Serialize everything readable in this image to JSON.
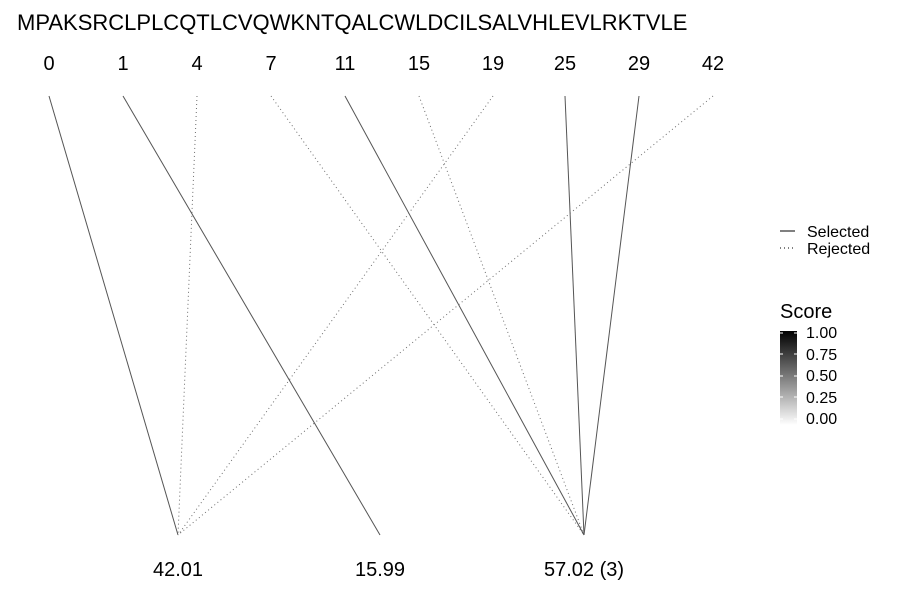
{
  "chart_data": {
    "type": "line",
    "sequence": "MPAKSRCLPLCQTLCVQWKNTQALCWLDCILSALVHLEVLRKTVLE",
    "positions": [
      "0",
      "1",
      "4",
      "7",
      "11",
      "15",
      "19",
      "25",
      "29",
      "42"
    ],
    "masses": [
      "42.01",
      "15.99",
      "57.02 (3)"
    ],
    "links": [
      {
        "position": "0",
        "mass": "42.01",
        "status": "Selected"
      },
      {
        "position": "1",
        "mass": "15.99",
        "status": "Selected"
      },
      {
        "position": "4",
        "mass": "42.01",
        "status": "Rejected"
      },
      {
        "position": "7",
        "mass": "57.02 (3)",
        "status": "Rejected"
      },
      {
        "position": "11",
        "mass": "57.02 (3)",
        "status": "Selected"
      },
      {
        "position": "15",
        "mass": "57.02 (3)",
        "status": "Rejected"
      },
      {
        "position": "19",
        "mass": "42.01",
        "status": "Rejected"
      },
      {
        "position": "25",
        "mass": "57.02 (3)",
        "status": "Selected"
      },
      {
        "position": "29",
        "mass": "57.02 (3)",
        "status": "Selected"
      },
      {
        "position": "42",
        "mass": "42.01",
        "status": "Rejected"
      }
    ],
    "legend": {
      "line_entries": [
        {
          "label": "Selected",
          "style": "solid"
        },
        {
          "label": "Rejected",
          "style": "dotted"
        }
      ],
      "score_title": "Score",
      "score_ticks": [
        "1.00",
        "0.75",
        "0.50",
        "0.25",
        "0.00"
      ],
      "score_colors": [
        "#000000",
        "#ffffff"
      ]
    }
  }
}
